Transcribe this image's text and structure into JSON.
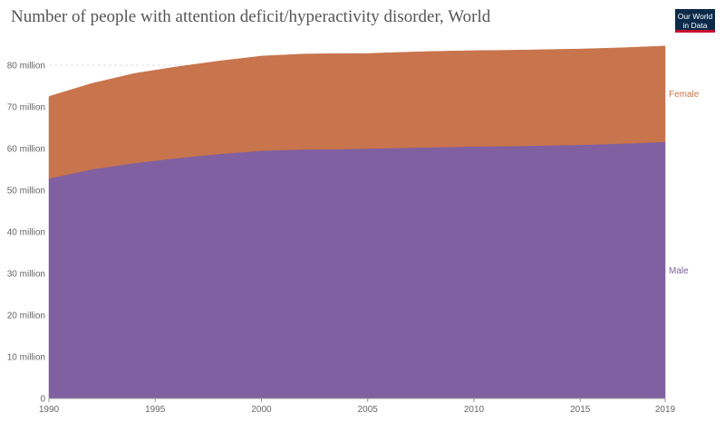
{
  "header": {
    "title": "Number of people with attention deficit/hyperactivity disorder, World",
    "logo_line1": "Our World",
    "logo_line2": "in Data"
  },
  "chart_data": {
    "type": "area",
    "stacked": true,
    "title": "Number of people with attention deficit/hyperactivity disorder, World",
    "xlabel": "",
    "ylabel": "",
    "xlim": [
      1990,
      2019
    ],
    "ylim": [
      0,
      80000000
    ],
    "grid": {
      "horizontal": true,
      "vertical": false
    },
    "legend_placement": "right",
    "x_tick_labels": [
      "1990",
      "1995",
      "2000",
      "2005",
      "2010",
      "2015",
      "2019"
    ],
    "y_ticks": [
      0,
      10000000,
      20000000,
      30000000,
      40000000,
      50000000,
      60000000,
      70000000,
      80000000
    ],
    "y_tick_labels": [
      "0",
      "10 million",
      "20 million",
      "30 million",
      "40 million",
      "50 million",
      "60 million",
      "70 million",
      "80 million"
    ],
    "x": [
      1990,
      1992,
      1994,
      1996,
      1998,
      2000,
      2002,
      2004,
      2005,
      2006,
      2008,
      2010,
      2012,
      2014,
      2015,
      2017,
      2019
    ],
    "series": [
      {
        "name": "Male",
        "color": "#8060a0",
        "values": [
          52800000,
          55000000,
          56500000,
          57700000,
          58700000,
          59500000,
          59800000,
          59900000,
          60000000,
          60100000,
          60300000,
          60500000,
          60600000,
          60800000,
          60900000,
          61200000,
          61600000
        ]
      },
      {
        "name": "Female",
        "color": "#c8744c",
        "values": [
          19700000,
          20600000,
          21500000,
          21900000,
          22300000,
          22700000,
          22900000,
          22900000,
          22800000,
          22900000,
          23000000,
          23000000,
          23000000,
          23000000,
          23000000,
          23000000,
          23000000
        ]
      }
    ]
  }
}
